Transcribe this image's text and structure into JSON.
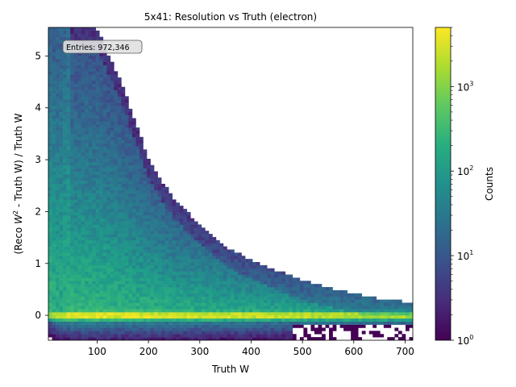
{
  "chart_data": {
    "type": "heatmap",
    "title": "5x41: Resolution vs Truth (electron)",
    "xlabel": "Truth W",
    "ylabel_parts": [
      "(Reco ",
      "W",
      "2",
      " - Truth W) / Truth W"
    ],
    "xlim": [
      5,
      715
    ],
    "ylim": [
      -0.48,
      5.55
    ],
    "xticks": [
      100,
      200,
      300,
      400,
      500,
      600,
      700
    ],
    "yticks": [
      0,
      1,
      2,
      3,
      4,
      5
    ],
    "annotation": "Entries: 972,346",
    "colorbar": {
      "label": "Counts",
      "scale": "log",
      "range": [
        1,
        5000
      ],
      "ticks": [
        {
          "value": 1,
          "base": "10",
          "exp": "0"
        },
        {
          "value": 10,
          "base": "10",
          "exp": "1"
        },
        {
          "value": 100,
          "base": "10",
          "exp": "2"
        },
        {
          "value": 1000,
          "base": "10",
          "exp": "3"
        }
      ],
      "colormap": "viridis"
    },
    "bins": {
      "x_count": 100,
      "y_count": 100
    },
    "distribution": {
      "core_y": 0.0,
      "core_peak_count": 5000,
      "upper_edge_curve": [
        {
          "x": 50,
          "y": 5.55
        },
        {
          "x": 100,
          "y": 5.4
        },
        {
          "x": 150,
          "y": 4.3
        },
        {
          "x": 200,
          "y": 2.9
        },
        {
          "x": 250,
          "y": 2.1
        },
        {
          "x": 300,
          "y": 1.65
        },
        {
          "x": 350,
          "y": 1.2
        },
        {
          "x": 400,
          "y": 0.95
        },
        {
          "x": 450,
          "y": 0.75
        },
        {
          "x": 500,
          "y": 0.55
        },
        {
          "x": 550,
          "y": 0.42
        },
        {
          "x": 600,
          "y": 0.3
        },
        {
          "x": 650,
          "y": 0.2
        },
        {
          "x": 700,
          "y": 0.15
        }
      ]
    }
  }
}
